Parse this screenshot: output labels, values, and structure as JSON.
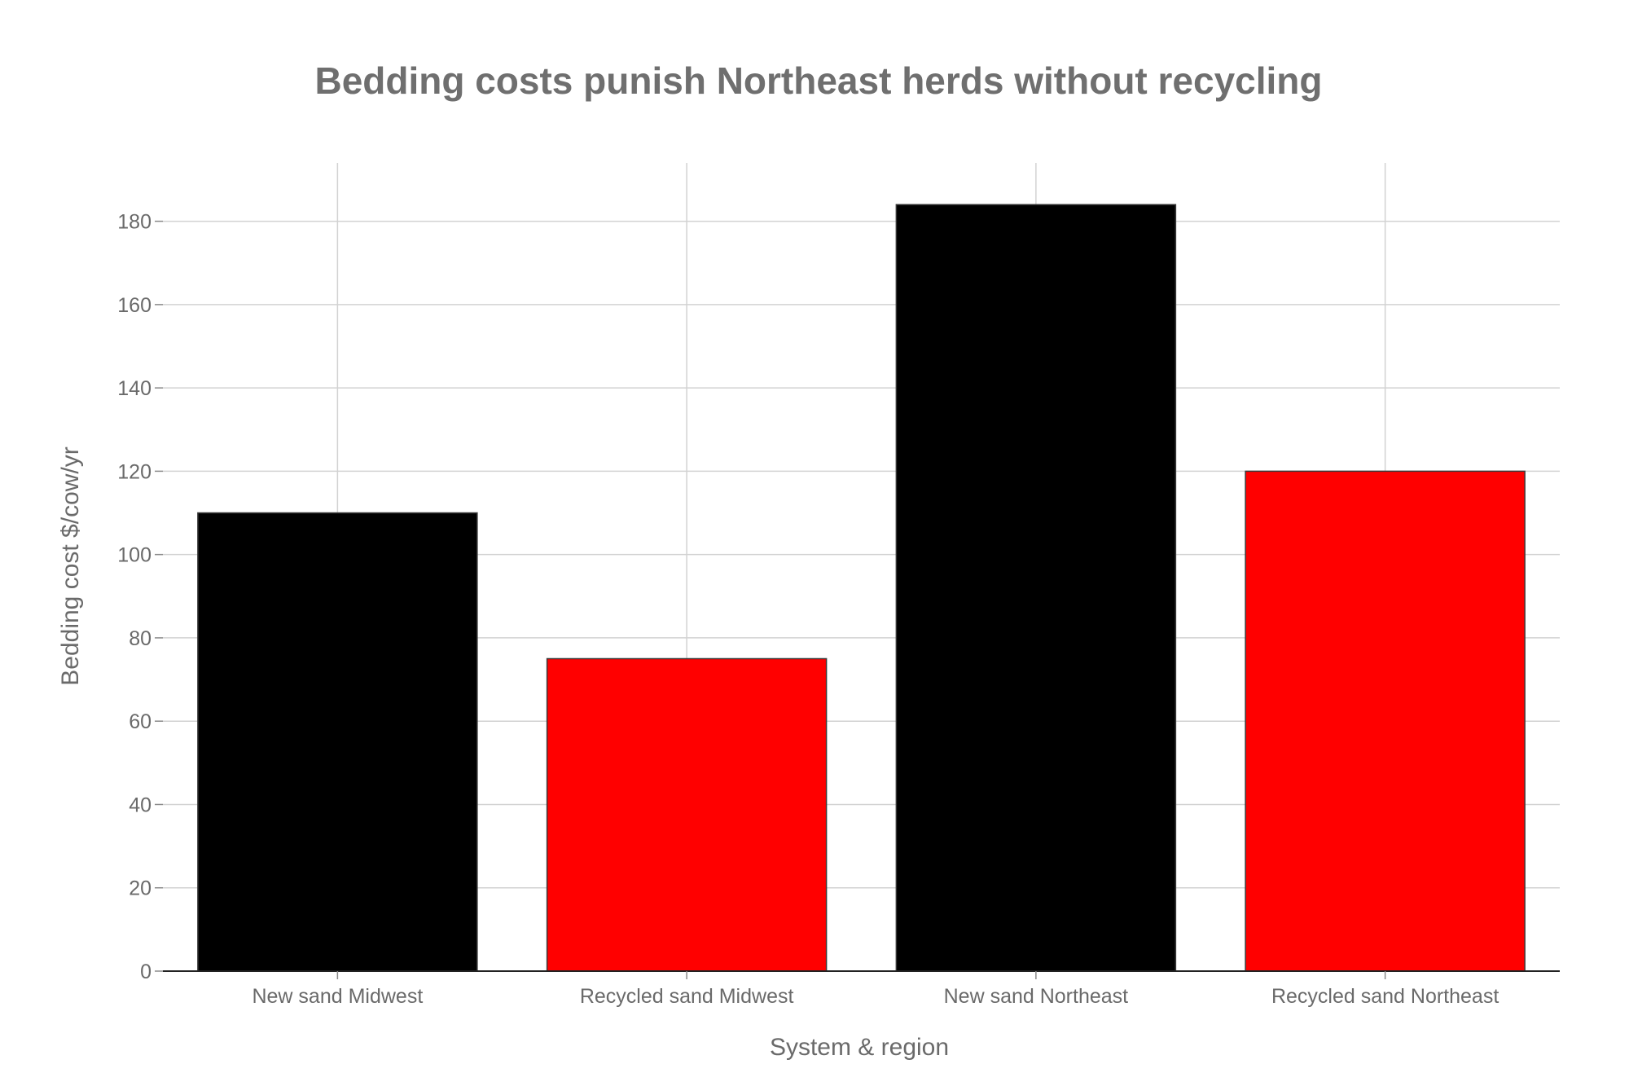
{
  "chart_data": {
    "type": "bar",
    "title": "Bedding costs punish Northeast herds without recycling",
    "xlabel": "System & region",
    "ylabel": "Bedding cost $/cow/yr",
    "categories": [
      "New sand Midwest",
      "Recycled sand Midwest",
      "New sand Northeast",
      "Recycled sand Northeast"
    ],
    "values": [
      110,
      75,
      184,
      120
    ],
    "colors": [
      "#000000",
      "#ff0000",
      "#000000",
      "#ff0000"
    ],
    "ylim": [
      0,
      194
    ],
    "yticks": [
      0,
      20,
      40,
      60,
      80,
      100,
      120,
      140,
      160,
      180
    ],
    "grid": true,
    "legend": "none"
  }
}
